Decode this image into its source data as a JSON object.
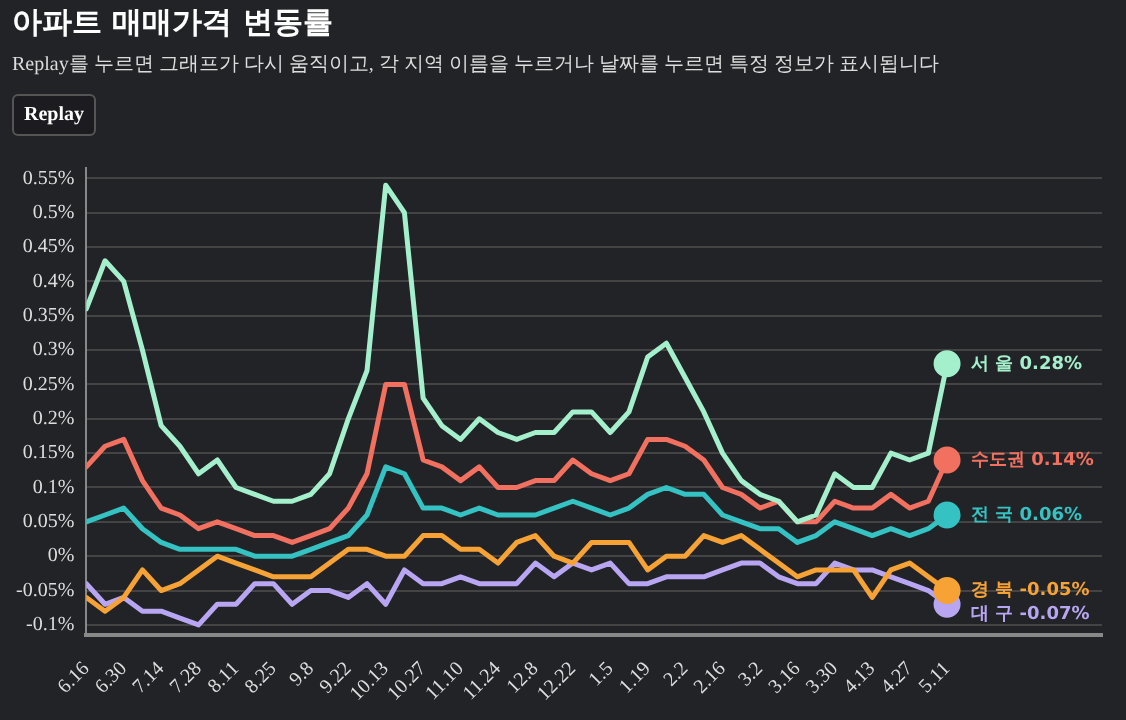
{
  "chart_data": {
    "type": "line",
    "title": "아파트 매매가격 변동률",
    "subtitle": "Replay를 누르면 그래프가 다시 움직이고, 각 지역 이름을 누르거나 날짜를 누르면 특정 정보가 표시됩니다",
    "annotations": [
      "Replay"
    ],
    "categories": [
      "6.16",
      null,
      "6.30",
      null,
      "7.14",
      null,
      "7.28",
      null,
      "8.11",
      null,
      "8.25",
      null,
      "9.8",
      null,
      "9.22",
      null,
      "10.13",
      null,
      "10.27",
      null,
      "11.10",
      null,
      "11.24",
      null,
      "12.8",
      null,
      "12.22",
      null,
      "1.5",
      null,
      "1.19",
      null,
      "2.2",
      null,
      "2.16",
      null,
      "3.2",
      null,
      "3.16",
      null,
      "3.30",
      null,
      "4.13",
      null,
      "4.27",
      null,
      "5.11"
    ],
    "ylim": [
      -0.115,
      0.565
    ],
    "yticks": [
      {
        "value": -0.1,
        "label": "-0.1%"
      },
      {
        "value": -0.05,
        "label": "-0.05%"
      },
      {
        "value": 0,
        "label": "0%"
      },
      {
        "value": 0.05,
        "label": "0.05%"
      },
      {
        "value": 0.1,
        "label": "0.1%"
      },
      {
        "value": 0.15,
        "label": "0.15%"
      },
      {
        "value": 0.2,
        "label": "0.2%"
      },
      {
        "value": 0.25,
        "label": "0.25%"
      },
      {
        "value": 0.3,
        "label": "0.3%"
      },
      {
        "value": 0.35,
        "label": "0.35%"
      },
      {
        "value": 0.4,
        "label": "0.4%"
      },
      {
        "value": 0.45,
        "label": "0.45%"
      },
      {
        "value": 0.5,
        "label": "0.5%"
      },
      {
        "value": 0.55,
        "label": "0.55%"
      }
    ],
    "grid": "y",
    "legend": false,
    "series": [
      {
        "name": "서 울",
        "color": "#a4efcc",
        "values": [
          0.36,
          0.43,
          0.4,
          0.3,
          0.19,
          0.16,
          0.12,
          0.14,
          0.1,
          0.09,
          0.08,
          0.08,
          0.09,
          0.12,
          0.2,
          0.27,
          0.54,
          0.5,
          0.23,
          0.19,
          0.17,
          0.2,
          0.18,
          0.17,
          0.18,
          0.18,
          0.21,
          0.21,
          0.18,
          0.21,
          0.29,
          0.31,
          0.26,
          0.21,
          0.15,
          0.11,
          0.09,
          0.08,
          0.05,
          0.06,
          0.12,
          0.1,
          0.1,
          0.15,
          0.14,
          0.15,
          0.28
        ],
        "value_labels": [
          null,
          null,
          null,
          null,
          null,
          null,
          null,
          null,
          null,
          null,
          null,
          null,
          null,
          null,
          null,
          null,
          null,
          null,
          null,
          null,
          null,
          null,
          null,
          null,
          null,
          null,
          null,
          null,
          null,
          null,
          null,
          null,
          null,
          null,
          null,
          null,
          null,
          null,
          null,
          null,
          null,
          null,
          null,
          null,
          null,
          null,
          "0.28%"
        ]
      },
      {
        "name": "수도권",
        "color": "#f2705f",
        "values": [
          0.13,
          0.16,
          0.17,
          0.11,
          0.07,
          0.06,
          0.04,
          0.05,
          0.04,
          0.03,
          0.03,
          0.02,
          0.03,
          0.04,
          0.07,
          0.12,
          0.25,
          0.25,
          0.14,
          0.13,
          0.11,
          0.13,
          0.1,
          0.1,
          0.11,
          0.11,
          0.14,
          0.12,
          0.11,
          0.12,
          0.17,
          0.17,
          0.16,
          0.14,
          0.1,
          0.09,
          0.07,
          0.08,
          0.05,
          0.05,
          0.08,
          0.07,
          0.07,
          0.09,
          0.07,
          0.08,
          0.14
        ],
        "value_labels": [
          null,
          null,
          null,
          null,
          null,
          null,
          null,
          null,
          null,
          null,
          null,
          null,
          null,
          null,
          null,
          null,
          null,
          null,
          null,
          null,
          null,
          null,
          null,
          null,
          null,
          null,
          null,
          null,
          null,
          null,
          null,
          null,
          null,
          null,
          null,
          null,
          null,
          null,
          null,
          null,
          null,
          null,
          null,
          null,
          null,
          null,
          "0.14%"
        ]
      },
      {
        "name": "전 국",
        "color": "#35c2c2",
        "values": [
          0.05,
          0.06,
          0.07,
          0.04,
          0.02,
          0.01,
          0.01,
          0.01,
          0.01,
          0.0,
          0.0,
          0.0,
          0.01,
          0.02,
          0.03,
          0.06,
          0.13,
          0.12,
          0.07,
          0.07,
          0.06,
          0.07,
          0.06,
          0.06,
          0.06,
          0.07,
          0.08,
          0.07,
          0.06,
          0.07,
          0.09,
          0.1,
          0.09,
          0.09,
          0.06,
          0.05,
          0.04,
          0.04,
          0.02,
          0.03,
          0.05,
          0.04,
          0.03,
          0.04,
          0.03,
          0.04,
          0.06
        ],
        "value_labels": [
          null,
          null,
          null,
          null,
          null,
          null,
          null,
          null,
          null,
          null,
          null,
          null,
          null,
          null,
          null,
          null,
          null,
          null,
          null,
          null,
          null,
          null,
          null,
          null,
          null,
          null,
          null,
          null,
          null,
          null,
          null,
          null,
          null,
          null,
          null,
          null,
          null,
          null,
          null,
          null,
          null,
          null,
          null,
          null,
          null,
          null,
          "0.06%"
        ]
      },
      {
        "name": "경 북",
        "color": "#f7a234",
        "values": [
          -0.06,
          -0.08,
          -0.06,
          -0.02,
          -0.05,
          -0.04,
          -0.02,
          0.0,
          -0.01,
          -0.02,
          -0.03,
          -0.03,
          -0.03,
          -0.01,
          0.01,
          0.01,
          0.0,
          0.0,
          0.03,
          0.03,
          0.01,
          0.01,
          -0.01,
          0.02,
          0.03,
          0.0,
          -0.01,
          0.02,
          0.02,
          0.02,
          -0.02,
          0.0,
          0.0,
          0.03,
          0.02,
          0.03,
          0.01,
          -0.01,
          -0.03,
          -0.02,
          -0.02,
          -0.02,
          -0.06,
          -0.02,
          -0.01,
          -0.03,
          -0.05
        ],
        "value_labels": [
          null,
          null,
          null,
          null,
          null,
          null,
          null,
          null,
          null,
          null,
          null,
          null,
          null,
          null,
          null,
          null,
          null,
          null,
          null,
          null,
          null,
          null,
          null,
          null,
          null,
          null,
          null,
          null,
          null,
          null,
          null,
          null,
          null,
          null,
          null,
          null,
          null,
          null,
          null,
          null,
          null,
          null,
          null,
          null,
          null,
          null,
          "-0.05%"
        ]
      },
      {
        "name": "대 구",
        "color": "#b9a6f2",
        "values": [
          -0.04,
          -0.07,
          -0.06,
          -0.08,
          -0.08,
          -0.09,
          -0.1,
          -0.07,
          -0.07,
          -0.04,
          -0.04,
          -0.07,
          -0.05,
          -0.05,
          -0.06,
          -0.04,
          -0.07,
          -0.02,
          -0.04,
          -0.04,
          -0.03,
          -0.04,
          -0.04,
          -0.04,
          -0.01,
          -0.03,
          -0.01,
          -0.02,
          -0.01,
          -0.04,
          -0.04,
          -0.03,
          -0.03,
          -0.03,
          -0.02,
          -0.01,
          -0.01,
          -0.03,
          -0.04,
          -0.04,
          -0.01,
          -0.02,
          -0.02,
          -0.03,
          -0.04,
          -0.05,
          -0.07
        ],
        "value_labels": [
          null,
          null,
          null,
          null,
          null,
          null,
          null,
          null,
          null,
          null,
          null,
          null,
          null,
          null,
          null,
          null,
          null,
          null,
          null,
          null,
          null,
          null,
          null,
          null,
          null,
          null,
          null,
          null,
          null,
          null,
          null,
          null,
          null,
          null,
          null,
          null,
          null,
          null,
          null,
          null,
          null,
          null,
          null,
          null,
          null,
          null,
          "-0.07%"
        ]
      }
    ]
  }
}
